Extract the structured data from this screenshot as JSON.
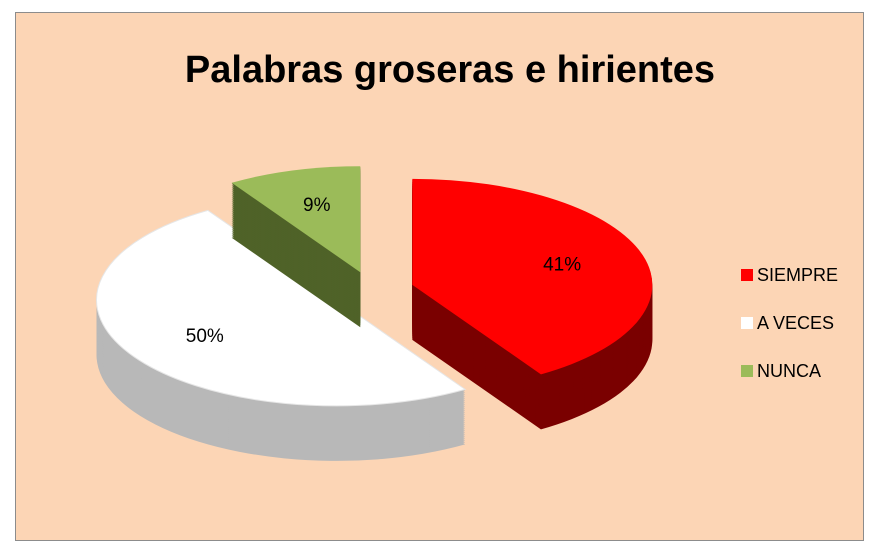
{
  "chart_data": {
    "type": "pie",
    "title": "Palabras groseras e hirientes",
    "categories": [
      "SIEMPRE",
      "A VECES",
      "NUNCA"
    ],
    "values": [
      41,
      50,
      9
    ],
    "value_labels": [
      "41%",
      "50%",
      "9%"
    ],
    "colors": [
      "#ff0000",
      "#ffffff",
      "#9bbb59"
    ],
    "side_colors": [
      "#7a0000",
      "#b8b8b8",
      "#4f6228"
    ],
    "legend": "right"
  }
}
